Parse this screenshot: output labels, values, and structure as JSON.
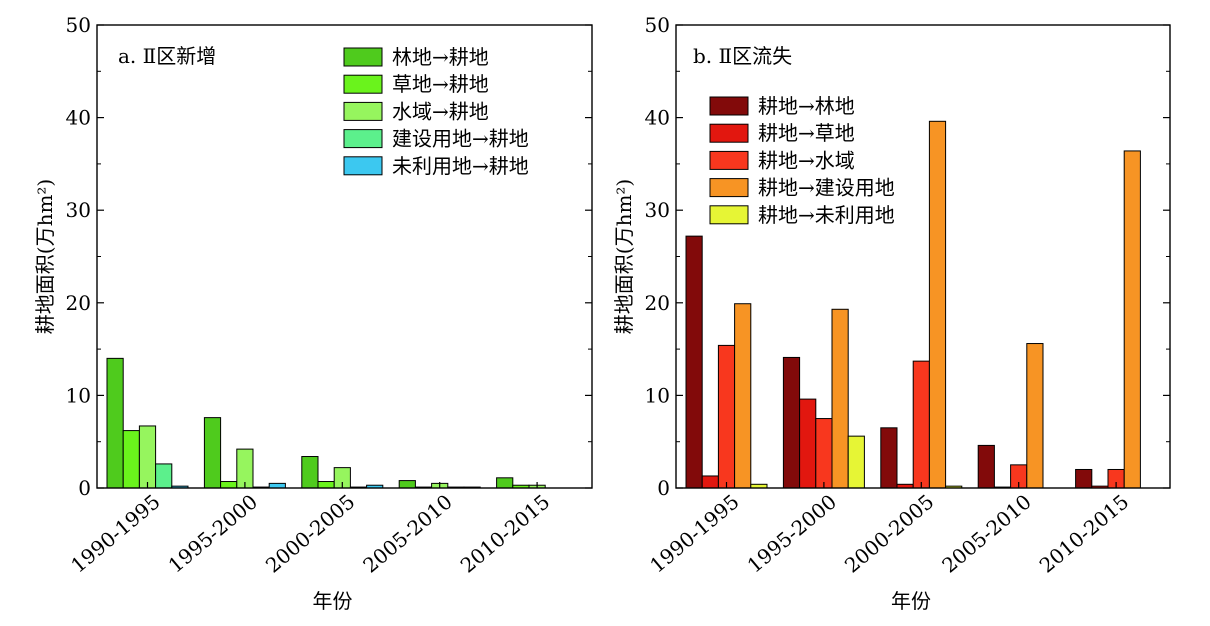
{
  "shared": {
    "xlabel": "年份"
  },
  "chart_data": [
    {
      "type": "bar",
      "title": "a. Ⅱ区新增",
      "ylabel": "耕地面积(万hm²)",
      "xlabel": "年份",
      "ylim": [
        0,
        50
      ],
      "yticks": [
        0,
        10,
        20,
        30,
        40,
        50
      ],
      "grid": false,
      "legend_position": "top-right",
      "categories": [
        "1990-1995",
        "1995-2000",
        "2000-2005",
        "2005-2010",
        "2010-2015"
      ],
      "series": [
        {
          "name": "林地→耕地",
          "color": "#4fcb1d",
          "values": [
            14.0,
            7.6,
            3.4,
            0.8,
            1.1
          ]
        },
        {
          "name": "草地→耕地",
          "color": "#6af31c",
          "values": [
            6.2,
            0.7,
            0.7,
            0.1,
            0.3
          ]
        },
        {
          "name": "水域→耕地",
          "color": "#96f55e",
          "values": [
            6.7,
            4.2,
            2.2,
            0.5,
            0.3
          ]
        },
        {
          "name": "建设用地→耕地",
          "color": "#5cf08c",
          "values": [
            2.6,
            0.1,
            0.1,
            0.1,
            0.0
          ]
        },
        {
          "name": "未利用地→耕地",
          "color": "#3cc8f0",
          "values": [
            0.2,
            0.5,
            0.3,
            0.1,
            0.0
          ]
        }
      ]
    },
    {
      "type": "bar",
      "title": "b. Ⅱ区流失",
      "ylabel": "耕地面积(万hm²)",
      "xlabel": "年份",
      "ylim": [
        0,
        50
      ],
      "yticks": [
        0,
        10,
        20,
        30,
        40,
        50
      ],
      "grid": false,
      "legend_position": "top-left",
      "categories": [
        "1990-1995",
        "1995-2000",
        "2000-2005",
        "2005-2010",
        "2010-2015"
      ],
      "series": [
        {
          "name": "耕地→林地",
          "color": "#820a0a",
          "values": [
            27.2,
            14.1,
            6.5,
            4.6,
            2.0
          ]
        },
        {
          "name": "耕地→草地",
          "color": "#e2170f",
          "values": [
            1.3,
            9.6,
            0.4,
            0.1,
            0.2
          ]
        },
        {
          "name": "耕地→水域",
          "color": "#f8371e",
          "values": [
            15.4,
            7.5,
            13.7,
            2.5,
            2.0
          ]
        },
        {
          "name": "耕地→建设用地",
          "color": "#f79424",
          "values": [
            19.9,
            19.3,
            39.6,
            15.6,
            36.4
          ]
        },
        {
          "name": "耕地→未利用地",
          "color": "#e6f535",
          "values": [
            0.4,
            5.6,
            0.2,
            0.0,
            0.0
          ]
        }
      ]
    }
  ]
}
